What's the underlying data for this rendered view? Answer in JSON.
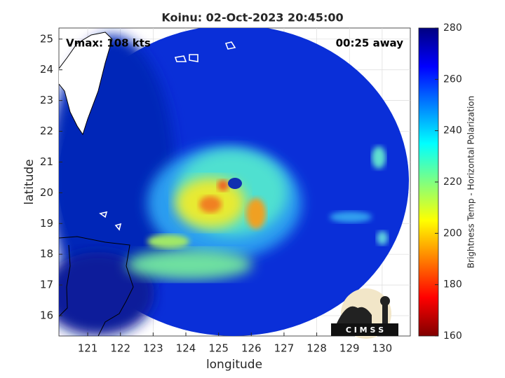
{
  "chart_data": {
    "type": "map",
    "title": "Koinu: 02-Oct-2023 20:45:00",
    "annotations": [
      "Vmax: 108 kts",
      "00:25 away"
    ],
    "xlabel": "longitude",
    "ylabel": "latitude",
    "xlim": [
      120.12,
      130.86
    ],
    "ylim": [
      15.34,
      25.36
    ],
    "xticks": [
      121,
      122,
      123,
      124,
      125,
      126,
      127,
      128,
      129,
      130
    ],
    "yticks": [
      16,
      17,
      18,
      19,
      20,
      21,
      22,
      23,
      24,
      25
    ],
    "grid": true,
    "colorbar": {
      "label": "Brightness Temp - Horizontal Polarization",
      "lim": [
        160,
        280
      ],
      "ticks": [
        160,
        180,
        200,
        220,
        240,
        260,
        280
      ],
      "colormap": "jet"
    }
  },
  "logo": "C I M S S"
}
